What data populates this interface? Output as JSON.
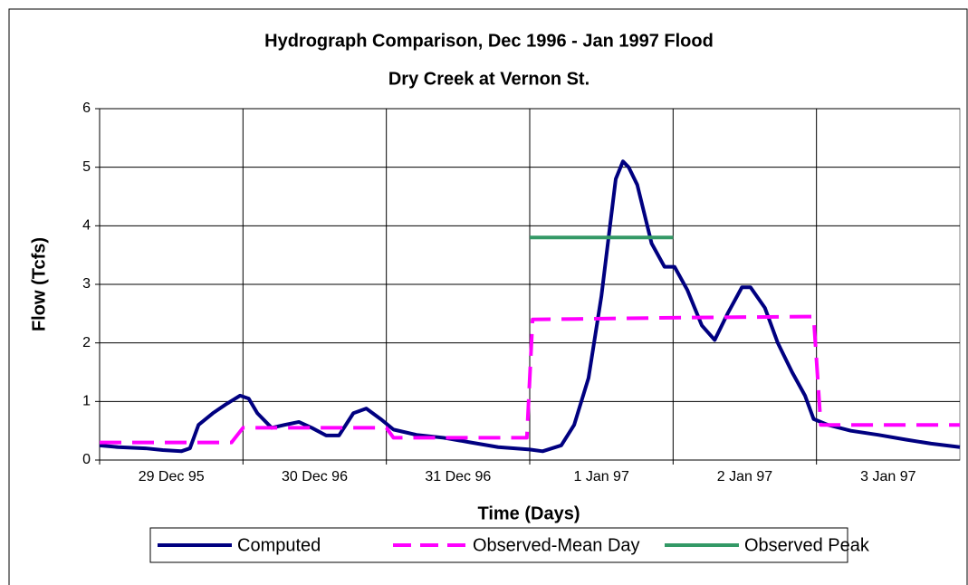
{
  "chart_data": {
    "type": "line",
    "title": "Hydrograph Comparison, Dec 1996 - Jan 1997 Flood",
    "subtitle": "Dry Creek at Vernon St.",
    "xlabel": "Time (Days)",
    "ylabel": "Flow  (Tcfs)",
    "categories": [
      "29 Dec 95",
      "30 Dec 96",
      "31 Dec 96",
      "1 Jan 97",
      "2 Jan 97",
      "3 Jan 97"
    ],
    "ylim": [
      0,
      6
    ],
    "yticks": [
      0,
      1,
      2,
      3,
      4,
      5,
      6
    ],
    "grid": true,
    "legend": "bottom",
    "series": [
      {
        "name": "Computed",
        "color": "#000080",
        "style": "solid",
        "x": [
          0,
          0.13,
          0.32,
          0.44,
          0.57,
          0.63,
          0.69,
          0.79,
          0.88,
          0.98,
          1.04,
          1.1,
          1.2,
          1.29,
          1.39,
          1.48,
          1.58,
          1.67,
          1.77,
          1.86,
          1.96,
          2.05,
          2.21,
          2.4,
          2.59,
          2.78,
          3.0,
          3.09,
          3.22,
          3.31,
          3.41,
          3.5,
          3.56,
          3.6,
          3.65,
          3.69,
          3.75,
          3.85,
          3.94,
          4.01,
          4.1,
          4.2,
          4.29,
          4.38,
          4.48,
          4.54,
          4.64,
          4.73,
          4.83,
          4.92,
          4.98,
          5.08,
          5.24,
          5.43,
          5.62,
          5.8,
          6.0
        ],
        "values": [
          0.25,
          0.22,
          0.2,
          0.17,
          0.15,
          0.2,
          0.6,
          0.8,
          0.95,
          1.1,
          1.05,
          0.8,
          0.55,
          0.6,
          0.65,
          0.55,
          0.42,
          0.42,
          0.8,
          0.88,
          0.7,
          0.52,
          0.43,
          0.38,
          0.3,
          0.22,
          0.18,
          0.15,
          0.25,
          0.6,
          1.4,
          2.8,
          4.0,
          4.8,
          5.1,
          5.0,
          4.7,
          3.7,
          3.3,
          3.3,
          2.9,
          2.3,
          2.05,
          2.5,
          2.95,
          2.95,
          2.6,
          2.0,
          1.5,
          1.1,
          0.7,
          0.6,
          0.5,
          0.43,
          0.35,
          0.28,
          0.22
        ]
      },
      {
        "name": "Observed-Mean Day",
        "color": "#ff00ff",
        "style": "dashed",
        "x": [
          0,
          0.92,
          1.0,
          2.0,
          2.05,
          2.98,
          3.02,
          4.0,
          4.98,
          5.03,
          6.0
        ],
        "values": [
          0.3,
          0.3,
          0.55,
          0.55,
          0.38,
          0.38,
          2.4,
          2.43,
          2.45,
          0.6,
          0.6
        ]
      },
      {
        "name": "Observed Peak",
        "color": "#339966",
        "style": "solid",
        "x": [
          3,
          4
        ],
        "values": [
          3.8,
          3.8
        ]
      }
    ]
  }
}
